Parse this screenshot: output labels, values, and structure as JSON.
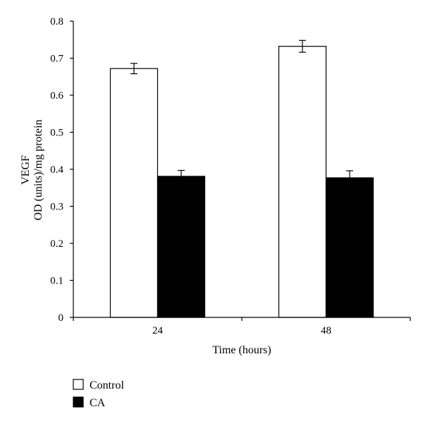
{
  "chart_data": {
    "type": "bar",
    "categories": [
      "24",
      "48"
    ],
    "series": [
      {
        "name": "Control",
        "values": [
          0.672,
          0.732
        ],
        "errors": [
          0.014,
          0.016
        ],
        "color": "#ffffff"
      },
      {
        "name": "CA",
        "values": [
          0.381,
          0.377
        ],
        "errors": [
          0.016,
          0.019
        ],
        "color": "#000000"
      }
    ],
    "xlabel": "Time (hours)",
    "ylabel_lines": [
      "VEGF",
      "OD (units)/mg protein"
    ],
    "ylim": [
      0,
      0.8
    ],
    "yticks": [
      "0",
      "0.1",
      "0.2",
      "0.3",
      "0.4",
      "0.5",
      "0.6",
      "0.7",
      "0.8"
    ],
    "grid": false,
    "legend_position": "bottom-left"
  }
}
